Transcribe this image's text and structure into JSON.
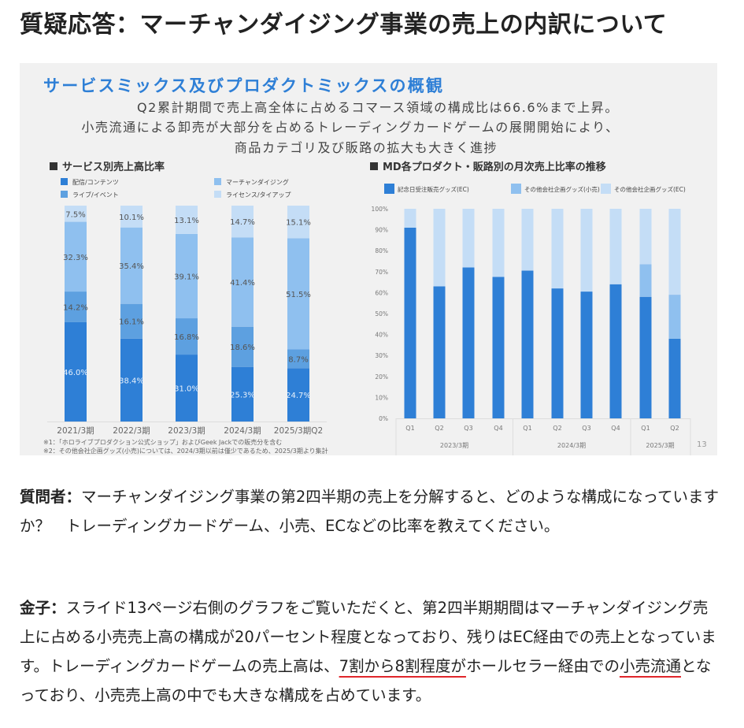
{
  "article": {
    "title": "質疑応答：マーチャンダイジング事業の売上の内訳について",
    "paragraphs": [
      {
        "speaker": "質問者",
        "sep": "：",
        "text_before": "マーチャンダイジング事業の第2四半期の売上を分解すると、どのような構成になっていますか？　トレーディングカードゲーム、小売、ECなどの比率を教えてください。",
        "underline1": "",
        "text_mid": "",
        "underline2": "",
        "text_after": ""
      },
      {
        "speaker": "金子",
        "sep": "：",
        "text_before": "スライド13ページ右側のグラフをご覧いただくと、第2四半期期間はマーチャンダイジング売上に占める小売売上高の構成が20パーセント程度となっており、残りはEC経由での売上となっています。トレーディングカードゲームの売上高は、",
        "underline1": "7割から8割程度が",
        "text_mid": "ホールセラー経由での",
        "underline2": "小売流通",
        "text_after": "となっており、小売売上高の中でも大きな構成を占めています。"
      }
    ],
    "underline_color": "#e0262b"
  },
  "slide": {
    "title": "サービスミックス及びプロダクトミックスの概観",
    "subtitle_lines": [
      "Q2累計期間で売上高全体に占めるコマース領域の構成比は66.6%まで上昇。",
      "小売流通による卸売が大部分を占めるトレーディングカードゲームの展開開始により、",
      "商品カテゴリ及び販路の拡大も大きく進捗"
    ],
    "page_number": "13",
    "footnotes": [
      "※1：「ホロライブプロダクション公式ショップ」およびGeek Jackでの販売分を含む",
      "※2：その他会社企画グッズ(小売)については、2024/3期以前は僅少であるため、2025/3期より集計"
    ],
    "colors": {
      "title": "#2e7fd6",
      "background": "#f1f1f1"
    }
  },
  "chart_data": [
    {
      "type": "bar",
      "stacked": true,
      "title": "サービス別売上高比率",
      "categories": [
        "2021/3期",
        "2022/3期",
        "2023/3期",
        "2024/3期",
        "2025/3期Q2"
      ],
      "series": [
        {
          "name": "配信/コンテンツ",
          "color": "#2e7fd6",
          "values": [
            46.0,
            38.4,
            31.0,
            25.3,
            24.7
          ],
          "labels": [
            "46.0%",
            "38.4%",
            "31.0%",
            "25.3%",
            "24.7%"
          ]
        },
        {
          "name": "ライブ/イベント",
          "color": "#5da0e0",
          "values": [
            14.2,
            16.1,
            16.8,
            18.6,
            8.7
          ],
          "labels": [
            "14.2%",
            "16.1%",
            "16.8%",
            "18.6%",
            "8.7%"
          ]
        },
        {
          "name": "マーチャンダイジング",
          "color": "#8fc0ef",
          "values": [
            32.3,
            35.4,
            39.1,
            41.4,
            51.5
          ],
          "labels": [
            "32.3%",
            "35.4%",
            "39.1%",
            "41.4%",
            "51.5%"
          ]
        },
        {
          "name": "ライセンス/タイアップ",
          "color": "#c4ddf6",
          "values": [
            7.5,
            10.1,
            13.1,
            14.7,
            15.1
          ],
          "labels": [
            "7.5%",
            "10.1%",
            "13.1%",
            "14.7%",
            "15.1%"
          ]
        }
      ],
      "ylim": [
        0,
        100
      ],
      "legend": "top"
    },
    {
      "type": "bar",
      "stacked": true,
      "title": "MD各プロダクト・販路別の月次売上比率の推移",
      "categories": [
        "Q1",
        "Q2",
        "Q3",
        "Q4",
        "Q1",
        "Q2",
        "Q3",
        "Q4",
        "Q1",
        "Q2"
      ],
      "groups": [
        {
          "label": "2023/3期",
          "count": 4
        },
        {
          "label": "2024/3期",
          "count": 4
        },
        {
          "label": "2025/3期",
          "count": 2
        }
      ],
      "series": [
        {
          "name": "記念日受注販売グッズ(EC)",
          "color": "#2e7fd6",
          "values": [
            91,
            63,
            72,
            67.5,
            70.5,
            62,
            60.5,
            64,
            58,
            38
          ]
        },
        {
          "name": "その他会社企画グッズ(小売)",
          "color": "#8fc0ef",
          "values": [
            0,
            0,
            0,
            0,
            0,
            0,
            0,
            0,
            15.5,
            21
          ]
        },
        {
          "name": "その他会社企画グッズ(EC)",
          "color": "#c4ddf6",
          "values": [
            9,
            37,
            28,
            32.5,
            29.5,
            38,
            39.5,
            36,
            26.5,
            41
          ]
        }
      ],
      "yticks": [
        "0%",
        "10%",
        "20%",
        "30%",
        "40%",
        "50%",
        "60%",
        "70%",
        "80%",
        "90%",
        "100%"
      ],
      "ylim": [
        0,
        100
      ],
      "legend": "top"
    }
  ]
}
